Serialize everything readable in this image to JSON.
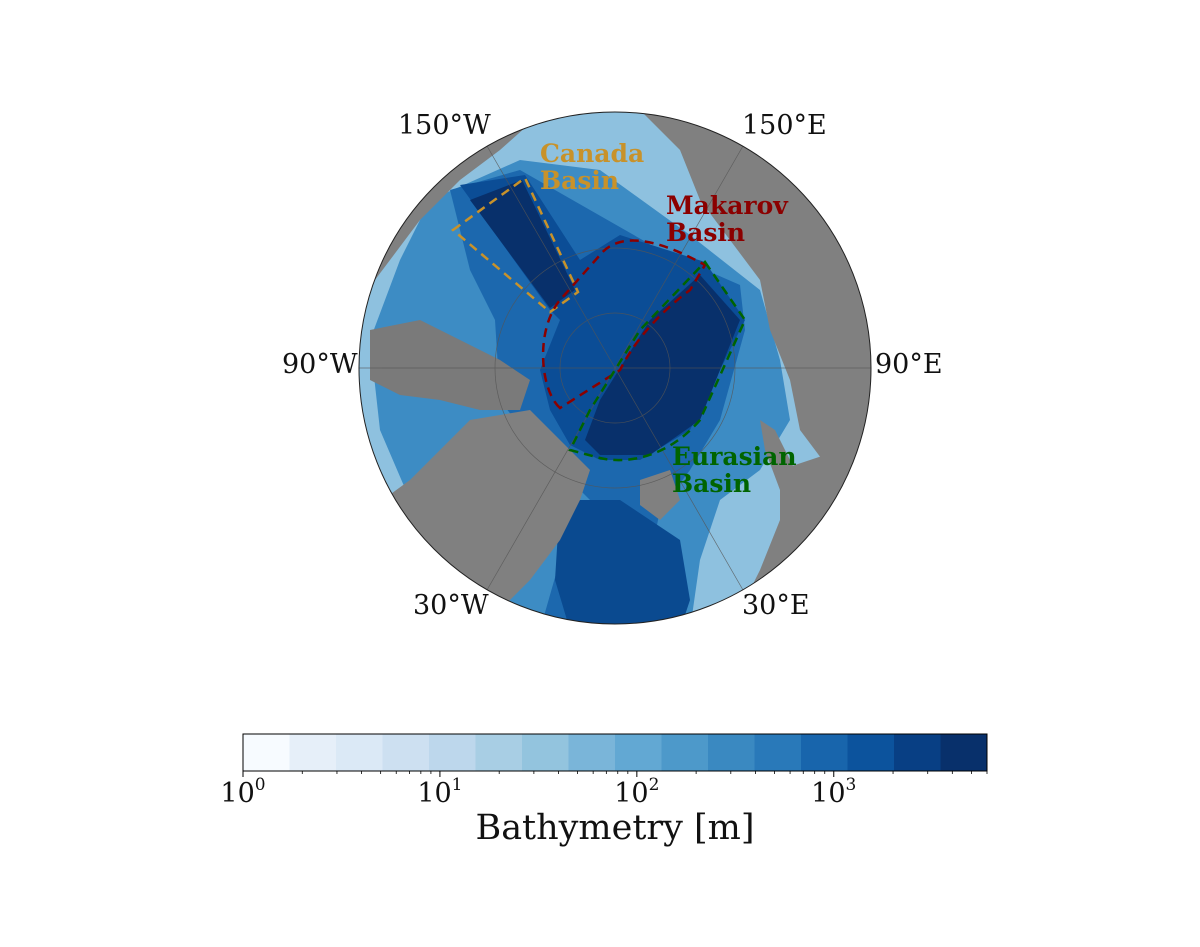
{
  "map": {
    "projection": "north-polar-stereographic",
    "land_color": "#808080",
    "graticule_color": "#555555",
    "longitude_labels": {
      "150W": "150°W",
      "150E": "150°E",
      "90W": "90°W",
      "90E": "90°E",
      "30W": "30°W",
      "30E": "30°E"
    },
    "basins": [
      {
        "name": "canada",
        "line1": "Canada",
        "line2": "Basin",
        "color": "#c8922a"
      },
      {
        "name": "makarov",
        "line1": "Makarov",
        "line2": "Basin",
        "color": "#8b0000"
      },
      {
        "name": "eurasian",
        "line1": "Eurasian",
        "line2": "Basin",
        "color": "#006400"
      }
    ]
  },
  "colorbar": {
    "label": "Bathymetry [m]",
    "scale": "log",
    "range": [
      1,
      6000
    ],
    "ticks": [
      {
        "value": 1,
        "base": "10",
        "exp": "0"
      },
      {
        "value": 10,
        "base": "10",
        "exp": "1"
      },
      {
        "value": 100,
        "base": "10",
        "exp": "2"
      },
      {
        "value": 1000,
        "base": "10",
        "exp": "3"
      }
    ],
    "colors": [
      "#f7fbff",
      "#e6eff9",
      "#dbe9f6",
      "#cde0f1",
      "#bdd7ec",
      "#a8cee4",
      "#93c4de",
      "#7ab5d9",
      "#62a8d3",
      "#4d99ca",
      "#3a89c1",
      "#2979b9",
      "#1865ac",
      "#0c539d",
      "#083f84",
      "#08306b"
    ]
  }
}
